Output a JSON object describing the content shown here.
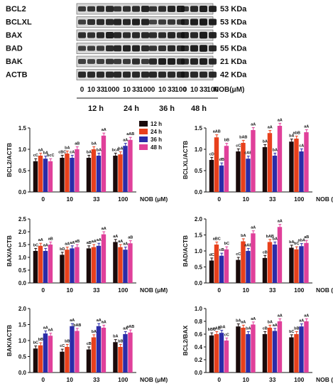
{
  "blot": {
    "rows": [
      {
        "name": "BCL2",
        "kda": "53 KDa"
      },
      {
        "name": "BCLXL",
        "kda": "53 KDa"
      },
      {
        "name": "BAX",
        "kda": "53 KDa"
      },
      {
        "name": "BAD",
        "kda": "55 KDa"
      },
      {
        "name": "BAK",
        "kda": "21 KDa"
      },
      {
        "name": "ACTB",
        "kda": "42 KDa"
      }
    ],
    "lane_labels": [
      "0",
      "10",
      "33",
      "100"
    ],
    "nob_label": "NOB(μM)",
    "time_labels": [
      "12 h",
      "24 h",
      "36 h",
      "48 h"
    ]
  },
  "legend": {
    "entries": [
      {
        "label": "12 h",
        "color": "#1a0a0a"
      },
      {
        "label": "24 h",
        "color": "#e8401c"
      },
      {
        "label": "36 h",
        "color": "#2b2ba8"
      },
      {
        "label": "48 h",
        "color": "#e0409a"
      }
    ]
  },
  "chart_data": [
    {
      "type": "bar",
      "ylabel": "BCL2/ACTB",
      "xlabel": "NOB (μM)",
      "categories": [
        "0",
        "10",
        "33",
        "100"
      ],
      "ylim": [
        0,
        1.5
      ],
      "yticks": [
        "0.0",
        "0.5",
        "1.0",
        "1.5"
      ],
      "series": [
        {
          "name": "12 h",
          "values": [
            0.72,
            0.8,
            0.8,
            0.85
          ],
          "labels": [
            "cC",
            "cBC",
            "bA",
            "bcA"
          ]
        },
        {
          "name": "24 h",
          "values": [
            0.85,
            0.9,
            1.0,
            0.88
          ],
          "labels": [
            "aA",
            "bA",
            "bA",
            "bA"
          ]
        },
        {
          "name": "36 h",
          "values": [
            0.78,
            0.8,
            0.85,
            1.08
          ],
          "labels": [
            "bA",
            "cA",
            "bA",
            "aA"
          ]
        },
        {
          "name": "48 h",
          "values": [
            0.72,
            1.0,
            1.32,
            1.22
          ],
          "labels": [
            "bcC",
            "aB",
            "aA",
            "aAB"
          ]
        }
      ]
    },
    {
      "type": "bar",
      "ylabel": "BCLXL/ACTB",
      "xlabel": "NOB (μM)",
      "categories": [
        "0",
        "10",
        "33",
        "100"
      ],
      "ylim": [
        0,
        1.5
      ],
      "yticks": [
        "0.0",
        "0.5",
        "1.0",
        "1.5"
      ],
      "series": [
        {
          "name": "12 h",
          "values": [
            0.75,
            0.95,
            1.05,
            1.18
          ],
          "labels": [
            "cD",
            "cC",
            "bA",
            "bA"
          ]
        },
        {
          "name": "24 h",
          "values": [
            1.28,
            1.15,
            1.38,
            1.25
          ],
          "labels": [
            "aAB",
            "bAB",
            "aA",
            "abB"
          ]
        },
        {
          "name": "36 h",
          "values": [
            0.62,
            0.78,
            0.85,
            0.95
          ],
          "labels": [
            "dB",
            "cAB",
            "bA",
            "cA"
          ]
        },
        {
          "name": "48 h",
          "values": [
            1.08,
            1.45,
            1.55,
            1.4
          ],
          "labels": [
            "bB",
            "aA",
            "aA",
            "aA"
          ]
        }
      ]
    },
    {
      "type": "bar",
      "ylabel": "BAX/ACTB",
      "xlabel": "NOB (μM)",
      "categories": [
        "0",
        "10",
        "33",
        "100"
      ],
      "ylim": [
        0,
        2.5
      ],
      "yticks": [
        "0.0",
        "0.5",
        "1.0",
        "1.5",
        "2.0",
        "2.5"
      ],
      "series": [
        {
          "name": "12 h",
          "values": [
            1.25,
            1.1,
            1.35,
            1.6
          ],
          "labels": [
            "bC",
            "bD",
            "aB",
            "aA"
          ]
        },
        {
          "name": "24 h",
          "values": [
            1.45,
            1.3,
            1.4,
            1.4
          ],
          "labels": [
            "aA",
            "aA",
            "aA",
            "aA"
          ]
        },
        {
          "name": "36 h",
          "values": [
            1.25,
            1.35,
            1.45,
            1.3
          ],
          "labels": [
            "aA",
            "aA",
            "aA",
            "aA"
          ]
        },
        {
          "name": "48 h",
          "values": [
            1.5,
            1.4,
            1.9,
            1.55
          ],
          "labels": [
            "aB",
            "aB",
            "aA",
            "aB"
          ]
        }
      ]
    },
    {
      "type": "bar",
      "ylabel": "BAD/ACTB",
      "xlabel": "NOB (μM)",
      "categories": [
        "0",
        "10",
        "33",
        "100"
      ],
      "ylim": [
        0,
        2.0
      ],
      "yticks": [
        "0.0",
        "0.5",
        "1.0",
        "1.5",
        "2.0"
      ],
      "series": [
        {
          "name": "12 h",
          "values": [
            0.7,
            0.72,
            0.78,
            1.1
          ],
          "labels": [
            "dC",
            "cC",
            "cB",
            "bA"
          ]
        },
        {
          "name": "24 h",
          "values": [
            1.2,
            1.3,
            1.28,
            1.05
          ],
          "labels": [
            "aBC",
            "bA",
            "bAB",
            "bC"
          ]
        },
        {
          "name": "36 h",
          "values": [
            0.85,
            1.0,
            1.2,
            1.15
          ],
          "labels": [
            "cB",
            "aAB",
            "bA",
            "abA"
          ]
        },
        {
          "name": "48 h",
          "values": [
            1.05,
            1.55,
            1.75,
            1.25
          ],
          "labels": [
            "bC",
            "aA",
            "aA",
            "aB"
          ]
        }
      ]
    },
    {
      "type": "bar",
      "ylabel": "BAK/ACTB",
      "xlabel": "NOB (μM)",
      "categories": [
        "0",
        "10",
        "33",
        "100"
      ],
      "ylim": [
        0,
        2.0
      ],
      "yticks": [
        "0.0",
        "0.5",
        "1.0",
        "1.5",
        "2.0"
      ],
      "series": [
        {
          "name": "12 h",
          "values": [
            0.75,
            0.65,
            0.72,
            0.95
          ],
          "labels": [
            "bC",
            "cC",
            "cB",
            "bA"
          ]
        },
        {
          "name": "24 h",
          "values": [
            0.85,
            0.8,
            1.1,
            0.8
          ],
          "labels": [
            "bB",
            "bB",
            "bA",
            "bB"
          ]
        },
        {
          "name": "36 h",
          "values": [
            1.22,
            1.45,
            1.45,
            1.2
          ],
          "labels": [
            "aA",
            "aA",
            "aA",
            "aA"
          ]
        },
        {
          "name": "48 h",
          "values": [
            1.15,
            1.3,
            1.4,
            1.25
          ],
          "labels": [
            "aA",
            "bAB",
            "aA",
            "aAB"
          ]
        }
      ]
    },
    {
      "type": "bar",
      "ylabel": "BCL2/BAX",
      "xlabel": "NOB (μM)",
      "categories": [
        "0",
        "10",
        "33",
        "100"
      ],
      "ylim": [
        0,
        1.0
      ],
      "yticks": [
        "0.0",
        "0.2",
        "0.4",
        "0.6",
        "0.8",
        "1.0"
      ],
      "series": [
        {
          "name": "12 h",
          "values": [
            0.58,
            0.72,
            0.6,
            0.55
          ],
          "labels": [
            "bBC",
            "bA",
            "cB",
            "bC"
          ]
        },
        {
          "name": "24 h",
          "values": [
            0.6,
            0.7,
            0.7,
            0.6
          ],
          "labels": [
            "aAB",
            "aA",
            "bA",
            "bB"
          ]
        },
        {
          "name": "36 h",
          "values": [
            0.62,
            0.6,
            0.65,
            0.72
          ],
          "labels": [
            "abA",
            "bA",
            "aA",
            "aA"
          ]
        },
        {
          "name": "48 h",
          "values": [
            0.5,
            0.75,
            0.8,
            0.8
          ],
          "labels": [
            "cC",
            "aA",
            "aA",
            "aA"
          ]
        }
      ]
    }
  ]
}
